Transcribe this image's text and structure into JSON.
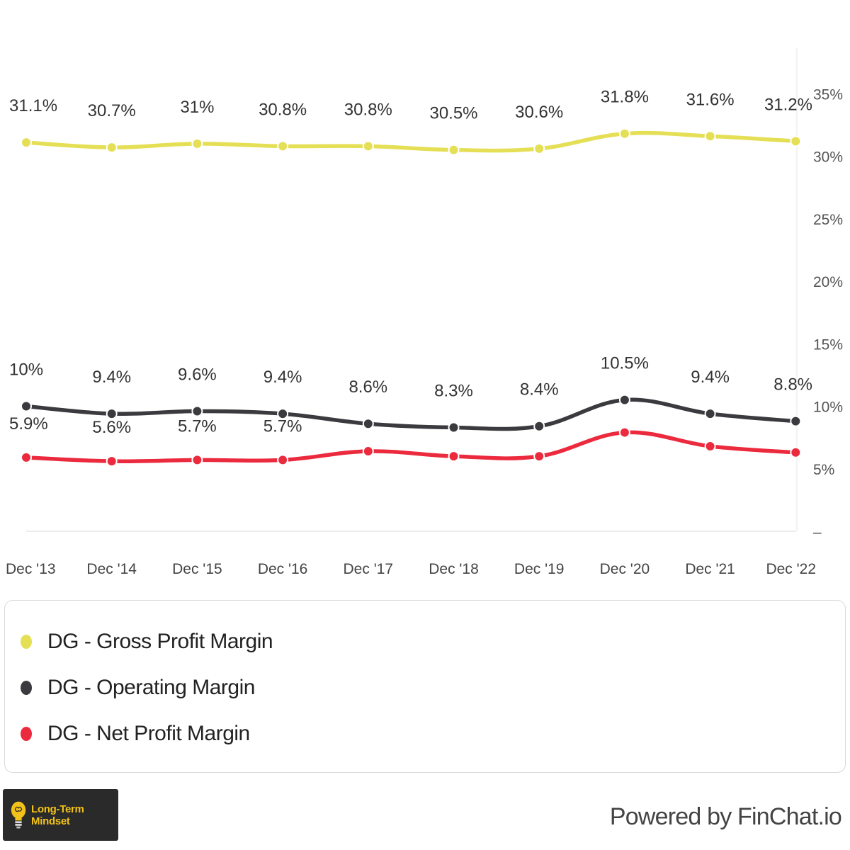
{
  "chart_data": {
    "type": "line",
    "categories": [
      "Dec '13",
      "Dec '14",
      "Dec '15",
      "Dec '16",
      "Dec '17",
      "Dec '18",
      "Dec '19",
      "Dec '20",
      "Dec '21",
      "Dec '22"
    ],
    "ylim": [
      0,
      35
    ],
    "yticks": [
      0,
      5,
      10,
      15,
      20,
      25,
      30,
      35
    ],
    "ytick_labels": [
      "–",
      "5%",
      "10%",
      "15%",
      "20%",
      "25%",
      "30%",
      "35%"
    ],
    "series": [
      {
        "name": "DG - Gross Profit Margin",
        "color": "#e5df55",
        "values": [
          31.1,
          30.7,
          31.0,
          30.8,
          30.8,
          30.5,
          30.6,
          31.8,
          31.6,
          31.2
        ],
        "labels": [
          "31.1%",
          "30.7%",
          "31%",
          "30.8%",
          "30.8%",
          "30.5%",
          "30.6%",
          "31.8%",
          "31.6%",
          "31.2%"
        ]
      },
      {
        "name": "DG - Operating Margin",
        "color": "#3a3a3f",
        "values": [
          10.0,
          9.4,
          9.6,
          9.4,
          8.6,
          8.3,
          8.4,
          10.5,
          9.4,
          8.8
        ],
        "labels": [
          "10%",
          "9.4%",
          "9.6%",
          "9.4%",
          "8.6%",
          "8.3%",
          "8.4%",
          "10.5%",
          "9.4%",
          "8.8%"
        ]
      },
      {
        "name": "DG - Net Profit Margin",
        "color": "#ec2a3e",
        "values": [
          5.9,
          5.6,
          5.7,
          5.7,
          6.4,
          6.0,
          6.0,
          7.9,
          6.8,
          6.3
        ],
        "labels": [
          "5.9%",
          "5.6%",
          "5.7%",
          "5.7%",
          "",
          "",
          "",
          "",
          "",
          ""
        ]
      }
    ]
  },
  "branding": {
    "badge_text": "Long-Term Mindset",
    "powered_by": "Powered by FinChat.io",
    "badge_icon": "lightbulb-brain-icon"
  }
}
